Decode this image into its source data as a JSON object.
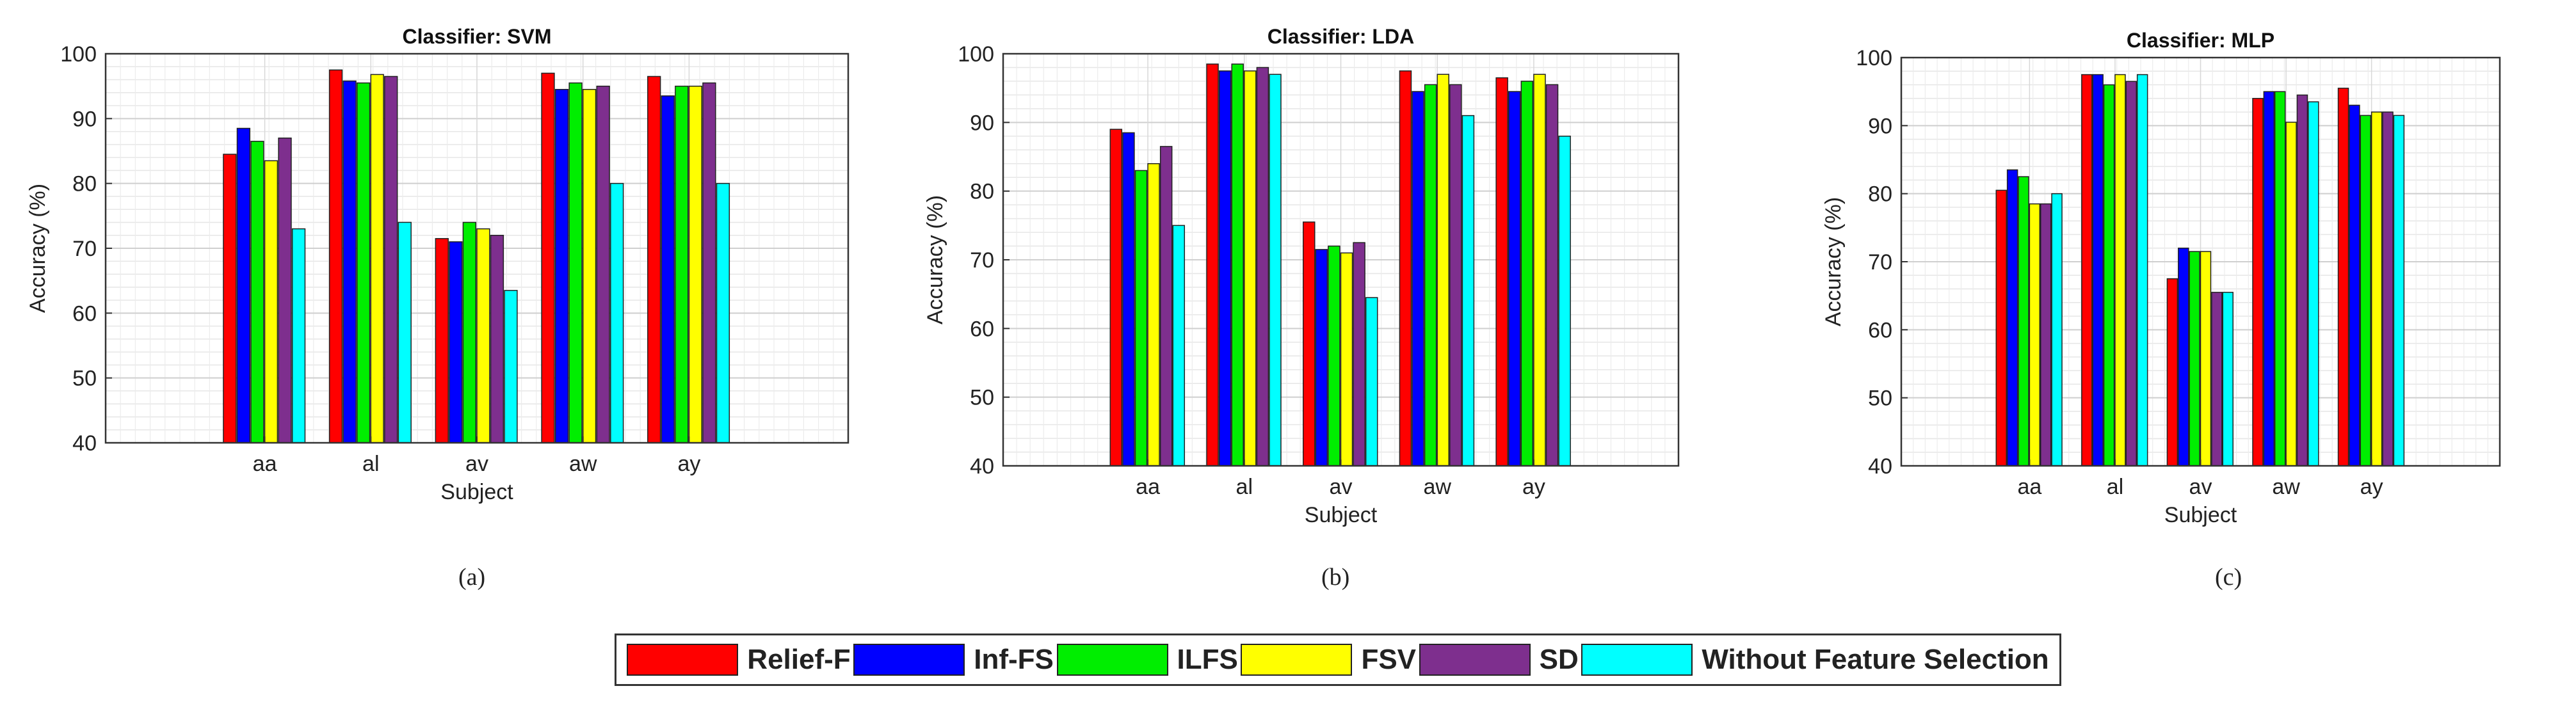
{
  "legend": [
    {
      "name": "Relief-F",
      "color": "#ff0000"
    },
    {
      "name": "Inf-FS",
      "color": "#0000ff"
    },
    {
      "name": "ILFS",
      "color": "#00ee00"
    },
    {
      "name": "FSV",
      "color": "#ffff00"
    },
    {
      "name": "SD",
      "color": "#7e2f8e"
    },
    {
      "name": "Without Feature Selection",
      "color": "#00ffff"
    }
  ],
  "captions": [
    "(a)",
    "(b)",
    "(c)"
  ],
  "chart_data": [
    {
      "type": "bar",
      "title": "Classifier: SVM",
      "xlabel": "Subject",
      "ylabel": "Accuracy (%)",
      "ylim": [
        40,
        100
      ],
      "yticks": [
        40,
        50,
        60,
        70,
        80,
        90,
        100
      ],
      "grid": true,
      "categories": [
        "aa",
        "al",
        "av",
        "aw",
        "ay"
      ],
      "series": [
        {
          "name": "Relief-F",
          "values": [
            84.5,
            97.5,
            71.5,
            97.0,
            96.5
          ]
        },
        {
          "name": "Inf-FS",
          "values": [
            88.5,
            95.8,
            71.0,
            94.5,
            93.5
          ]
        },
        {
          "name": "ILFS",
          "values": [
            86.5,
            95.5,
            74.0,
            95.5,
            95.0
          ]
        },
        {
          "name": "FSV",
          "values": [
            83.5,
            96.8,
            73.0,
            94.5,
            95.0
          ]
        },
        {
          "name": "SD",
          "values": [
            87.0,
            96.5,
            72.0,
            95.0,
            95.5
          ]
        },
        {
          "name": "Without Feature Selection",
          "values": [
            73.0,
            74.0,
            63.5,
            80.0,
            80.0
          ]
        }
      ]
    },
    {
      "type": "bar",
      "title": "Classifier: LDA",
      "xlabel": "Subject",
      "ylabel": "Accuracy (%)",
      "ylim": [
        40,
        100
      ],
      "yticks": [
        40,
        50,
        60,
        70,
        80,
        90,
        100
      ],
      "grid": true,
      "categories": [
        "aa",
        "al",
        "av",
        "aw",
        "ay"
      ],
      "series": [
        {
          "name": "Relief-F",
          "values": [
            89.0,
            98.5,
            75.5,
            97.5,
            96.5
          ]
        },
        {
          "name": "Inf-FS",
          "values": [
            88.5,
            97.5,
            71.5,
            94.5,
            94.5
          ]
        },
        {
          "name": "ILFS",
          "values": [
            83.0,
            98.5,
            72.0,
            95.5,
            96.0
          ]
        },
        {
          "name": "FSV",
          "values": [
            84.0,
            97.5,
            71.0,
            97.0,
            97.0
          ]
        },
        {
          "name": "SD",
          "values": [
            86.5,
            98.0,
            72.5,
            95.5,
            95.5
          ]
        },
        {
          "name": "Without Feature Selection",
          "values": [
            75.0,
            97.0,
            64.5,
            91.0,
            88.0
          ]
        }
      ]
    },
    {
      "type": "bar",
      "title": "Classifier: MLP",
      "xlabel": "Subject",
      "ylabel": "Accuracy (%)",
      "ylim": [
        40,
        100
      ],
      "yticks": [
        40,
        50,
        60,
        70,
        80,
        90,
        100
      ],
      "grid": true,
      "categories": [
        "aa",
        "al",
        "av",
        "aw",
        "ay"
      ],
      "series": [
        {
          "name": "Relief-F",
          "values": [
            80.5,
            97.5,
            67.5,
            94.0,
            95.5
          ]
        },
        {
          "name": "Inf-FS",
          "values": [
            83.5,
            97.5,
            72.0,
            95.0,
            93.0
          ]
        },
        {
          "name": "ILFS",
          "values": [
            82.5,
            96.0,
            71.5,
            95.0,
            91.5
          ]
        },
        {
          "name": "FSV",
          "values": [
            78.5,
            97.5,
            71.5,
            90.5,
            92.0
          ]
        },
        {
          "name": "SD",
          "values": [
            78.5,
            96.5,
            65.5,
            94.5,
            92.0
          ]
        },
        {
          "name": "Without Feature Selection",
          "values": [
            80.0,
            97.5,
            65.5,
            93.5,
            91.5
          ]
        }
      ]
    }
  ]
}
